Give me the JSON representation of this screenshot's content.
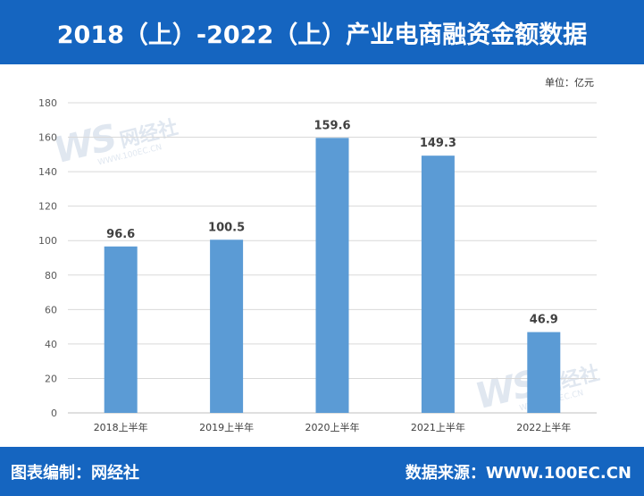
{
  "header": {
    "title": "2018（上）-2022（上）产业电商融资金额数据"
  },
  "unit_label": "单位：亿元",
  "watermark": {
    "logo": "WS",
    "brand": "网经社",
    "url": "WWW.100EC.CN"
  },
  "footer": {
    "left_text": "图表编制：网经社",
    "right_text": "数据来源：WWW.100EC.CN"
  },
  "colors": {
    "banner": "#1565c0",
    "bar": "#5b9bd5",
    "grid": "#d9d9d9"
  },
  "chart_data": {
    "type": "bar",
    "title": "2018（上）-2022（上）产业电商融资金额数据",
    "xlabel": "",
    "ylabel": "",
    "unit": "单位：亿元",
    "categories": [
      "2018上半年",
      "2019上半年",
      "2020上半年",
      "2021上半年",
      "2022上半年"
    ],
    "values": [
      96.6,
      100.5,
      159.6,
      149.3,
      46.9
    ],
    "value_labels": [
      "96.6",
      "100.5",
      "159.6",
      "149.3",
      "46.9"
    ],
    "ylim": [
      0,
      180
    ],
    "yticks": [
      0,
      20,
      40,
      60,
      80,
      100,
      120,
      140,
      160,
      180
    ],
    "grid": true,
    "legend": "none"
  }
}
